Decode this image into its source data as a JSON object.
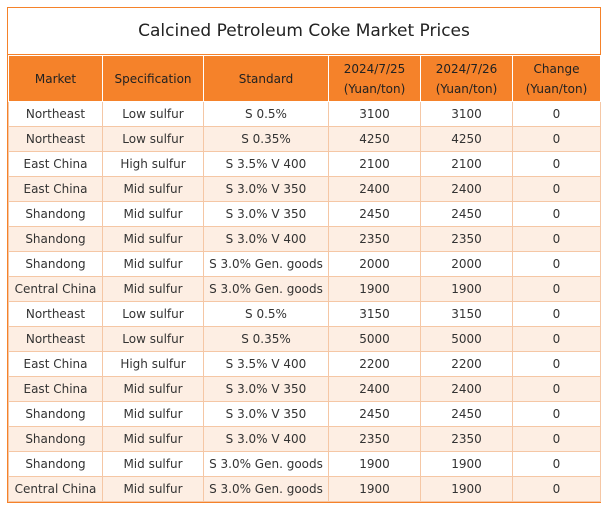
{
  "title": "Calcined Petroleum Coke Market Prices",
  "table": {
    "headers": [
      [
        "Market"
      ],
      [
        "Specification"
      ],
      [
        "Standard"
      ],
      [
        "2024/7/25",
        "(Yuan/ton)"
      ],
      [
        "2024/7/26",
        "(Yuan/ton)"
      ],
      [
        "Change",
        "(Yuan/ton)"
      ]
    ],
    "rows": [
      [
        "Northeast",
        "Low sulfur",
        "S 0.5%",
        "3100",
        "3100",
        "0"
      ],
      [
        "Northeast",
        "Low sulfur",
        "S 0.35%",
        "4250",
        "4250",
        "0"
      ],
      [
        "East China",
        "High sulfur",
        "S 3.5% V 400",
        "2100",
        "2100",
        "0"
      ],
      [
        "East China",
        "Mid sulfur",
        "S 3.0% V 350",
        "2400",
        "2400",
        "0"
      ],
      [
        "Shandong",
        "Mid sulfur",
        "S 3.0% V 350",
        "2450",
        "2450",
        "0"
      ],
      [
        "Shandong",
        "Mid sulfur",
        "S 3.0% V 400",
        "2350",
        "2350",
        "0"
      ],
      [
        "Shandong",
        "Mid sulfur",
        "S 3.0% Gen. goods",
        "2000",
        "2000",
        "0"
      ],
      [
        "Central China",
        "Mid sulfur",
        "S 3.0% Gen. goods",
        "1900",
        "1900",
        "0"
      ],
      [
        "Northeast",
        "Low sulfur",
        "S 0.5%",
        "3150",
        "3150",
        "0"
      ],
      [
        "Northeast",
        "Low sulfur",
        "S 0.35%",
        "5000",
        "5000",
        "0"
      ],
      [
        "East China",
        "High sulfur",
        "S 3.5% V 400",
        "2200",
        "2200",
        "0"
      ],
      [
        "East China",
        "Mid sulfur",
        "S 3.0% V 350",
        "2400",
        "2400",
        "0"
      ],
      [
        "Shandong",
        "Mid sulfur",
        "S 3.0% V 350",
        "2450",
        "2450",
        "0"
      ],
      [
        "Shandong",
        "Mid sulfur",
        "S 3.0% V 400",
        "2350",
        "2350",
        "0"
      ],
      [
        "Shandong",
        "Mid sulfur",
        "S 3.0% Gen. goods",
        "1900",
        "1900",
        "0"
      ],
      [
        "Central China",
        "Mid sulfur",
        "S 3.0% Gen. goods",
        "1900",
        "1900",
        "0"
      ]
    ]
  }
}
